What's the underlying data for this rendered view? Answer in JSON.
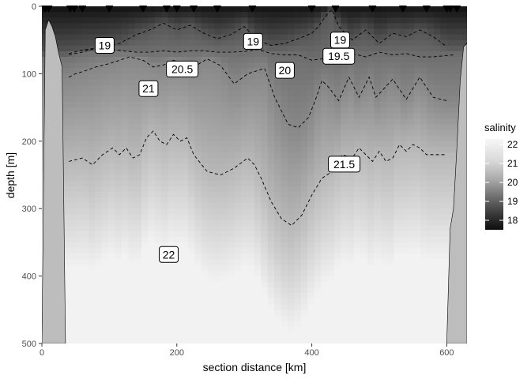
{
  "chart_data": {
    "type": "heatmap",
    "title": "",
    "xlabel": "section distance [km]",
    "ylabel": "depth [m]",
    "xlim": [
      0,
      630
    ],
    "ylim": [
      500,
      0
    ],
    "x_ticks": [
      0,
      200,
      400,
      600
    ],
    "y_ticks": [
      0,
      100,
      200,
      300,
      400,
      500
    ],
    "grid": false,
    "legend": {
      "title": "salinity",
      "placement": "right",
      "range": [
        17.5,
        22.3
      ],
      "ticks": [
        22,
        21,
        20,
        19,
        18
      ]
    },
    "station_markers_km": [
      5,
      10,
      42,
      48,
      60,
      100,
      150,
      185,
      200,
      225,
      260,
      312,
      400,
      435,
      490,
      535,
      570,
      600,
      605,
      615
    ],
    "seafloor_depth_m": {
      "x": [
        0,
        5,
        10,
        15,
        20,
        25,
        30,
        35,
        40,
        45,
        50,
        600,
        605,
        610,
        615,
        620,
        625,
        630
      ],
      "depth": [
        500,
        35,
        20,
        30,
        45,
        70,
        90,
        500,
        500,
        500,
        500,
        500,
        330,
        300,
        210,
        110,
        60,
        55
      ]
    },
    "contours": [
      {
        "level": 19,
        "x": [
          40,
          60,
          80,
          100,
          115,
          140,
          160,
          180,
          200,
          220,
          240,
          260,
          280,
          300,
          320,
          340,
          360,
          380,
          400,
          410,
          420,
          430,
          440,
          460,
          480,
          500,
          520,
          540,
          560,
          580,
          600
        ],
        "depth": [
          70,
          65,
          62,
          58,
          55,
          42,
          35,
          25,
          35,
          28,
          40,
          48,
          42,
          30,
          50,
          58,
          55,
          48,
          40,
          30,
          15,
          5,
          30,
          50,
          35,
          55,
          40,
          45,
          35,
          45,
          60
        ]
      },
      {
        "level": 19.5,
        "x": [
          40,
          60,
          80,
          100,
          120,
          140,
          160,
          180,
          200,
          220,
          240,
          260,
          280,
          300,
          320,
          340,
          360,
          380,
          400,
          420,
          440,
          460,
          480,
          500,
          520,
          540,
          560,
          580,
          610
        ],
        "depth": [
          72,
          68,
          62,
          63,
          66,
          68,
          68,
          66,
          68,
          66,
          66,
          68,
          68,
          67,
          64,
          70,
          72,
          72,
          80,
          77,
          72,
          70,
          75,
          68,
          72,
          70,
          75,
          75,
          72
        ]
      },
      {
        "level": 20,
        "x": [
          40,
          50,
          60,
          80,
          100,
          115,
          130,
          150,
          165,
          180,
          195,
          210,
          225,
          245,
          265,
          285,
          305,
          330,
          345,
          365,
          380,
          395,
          405,
          415,
          425,
          440,
          455,
          470,
          485,
          495,
          520,
          540,
          560,
          580,
          600
        ],
        "depth": [
          105,
          100,
          97,
          90,
          85,
          80,
          75,
          80,
          90,
          87,
          80,
          85,
          90,
          78,
          88,
          115,
          100,
          92,
          135,
          175,
          180,
          165,
          140,
          110,
          120,
          140,
          105,
          135,
          105,
          135,
          108,
          138,
          105,
          135,
          140
        ]
      },
      {
        "level": 21,
        "x": [
          40,
          60,
          75,
          90,
          105,
          115,
          125,
          135,
          145,
          155,
          165,
          175,
          185,
          195,
          205,
          215,
          225,
          245,
          265,
          285,
          305,
          315,
          325,
          340,
          355,
          370,
          385,
          400,
          415,
          430,
          445,
          460,
          470,
          480,
          490,
          500,
          510,
          520,
          530,
          540,
          550,
          560,
          570,
          600
        ],
        "depth": [
          230,
          225,
          235,
          220,
          210,
          220,
          210,
          225,
          220,
          195,
          185,
          200,
          205,
          190,
          200,
          195,
          220,
          245,
          250,
          240,
          225,
          235,
          255,
          290,
          315,
          325,
          310,
          280,
          255,
          245,
          220,
          225,
          210,
          220,
          230,
          215,
          230,
          225,
          205,
          215,
          205,
          210,
          220,
          220
        ]
      }
    ],
    "contour_labels": [
      {
        "text": "19",
        "x": 93,
        "depth": 58
      },
      {
        "text": "19",
        "x": 313,
        "depth": 52
      },
      {
        "text": "19",
        "x": 442,
        "depth": 50
      },
      {
        "text": "19.5",
        "x": 440,
        "depth": 74
      },
      {
        "text": "20",
        "x": 360,
        "depth": 95
      },
      {
        "text": "20.5",
        "x": 208,
        "depth": 93
      },
      {
        "text": "21",
        "x": 158,
        "depth": 122
      },
      {
        "text": "21.5",
        "x": 448,
        "depth": 234
      },
      {
        "text": "22",
        "x": 188,
        "depth": 368
      }
    ]
  }
}
